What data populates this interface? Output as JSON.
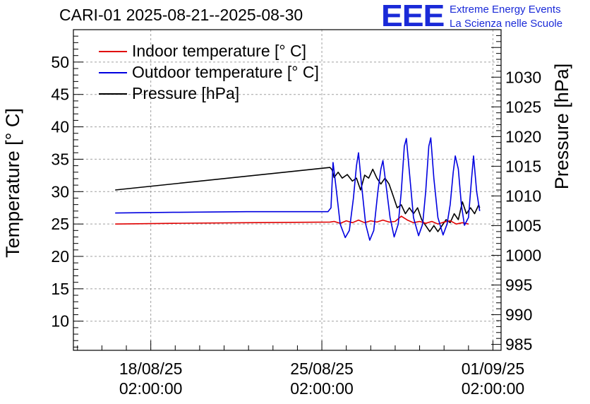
{
  "header": {
    "title": "CARI-01 2025-08-21--2025-08-30",
    "logo_text": "EEE",
    "logo_line1": "Extreme Energy Events",
    "logo_line2": "La Scienza nelle Scuole"
  },
  "colors": {
    "indoor": "#e00000",
    "outdoor": "#0000e0",
    "pressure": "#000000",
    "logo": "#1a2ad8",
    "grid": "#a0a0a0"
  },
  "chart_data": {
    "type": "line",
    "title": "CARI-01 2025-08-21--2025-08-30",
    "ylabel": "Temperature [° C]",
    "ylabel_right": "Pressure [hPa]",
    "ylim": [
      5.5,
      55
    ],
    "ylim_right": [
      984,
      1038
    ],
    "xlim": [
      "2025-08-14 22:00",
      "2025-09-01 10:00"
    ],
    "grid": true,
    "legend_position": "top-left",
    "x_ticks": [
      {
        "date": "18/08/25",
        "time": "02:00:00",
        "at": "2025-08-18 02:00"
      },
      {
        "date": "25/08/25",
        "time": "02:00:00",
        "at": "2025-08-25 02:00"
      },
      {
        "date": "01/09/25",
        "time": "02:00:00",
        "at": "2025-09-01 02:00"
      }
    ],
    "y_ticks_left": [
      "10",
      "15",
      "20",
      "25",
      "30",
      "35",
      "40",
      "45",
      "50"
    ],
    "y_ticks_right": [
      "985",
      "990",
      "995",
      "1000",
      "1005",
      "1010",
      "1015",
      "1020",
      "1025",
      "1030"
    ],
    "series": [
      {
        "name": "Indoor temperature [° C]",
        "axis": "left",
        "color": "#e00000",
        "points": [
          [
            "2025-08-16 15:00",
            25.0
          ],
          [
            "2025-08-19 00:00",
            25.1
          ],
          [
            "2025-08-22 00:00",
            25.2
          ],
          [
            "2025-08-25 10:00",
            25.3
          ],
          [
            "2025-08-25 14:00",
            25.4
          ],
          [
            "2025-08-25 20:00",
            25.1
          ],
          [
            "2025-08-26 02:00",
            25.5
          ],
          [
            "2025-08-26 08:00",
            25.2
          ],
          [
            "2025-08-26 14:00",
            25.6
          ],
          [
            "2025-08-26 20:00",
            25.2
          ],
          [
            "2025-08-27 02:00",
            25.5
          ],
          [
            "2025-08-27 08:00",
            25.3
          ],
          [
            "2025-08-27 14:00",
            25.6
          ],
          [
            "2025-08-27 20:00",
            25.3
          ],
          [
            "2025-08-28 02:00",
            25.4
          ],
          [
            "2025-08-28 08:00",
            26.2
          ],
          [
            "2025-08-28 14:00",
            25.6
          ],
          [
            "2025-08-28 20:00",
            25.2
          ],
          [
            "2025-08-29 02:00",
            25.4
          ],
          [
            "2025-08-29 08:00",
            25.1
          ],
          [
            "2025-08-29 14:00",
            25.4
          ],
          [
            "2025-08-29 20:00",
            25.0
          ],
          [
            "2025-08-30 02:00",
            25.3
          ],
          [
            "2025-08-30 08:00",
            25.5
          ],
          [
            "2025-08-30 14:00",
            25.0
          ],
          [
            "2025-08-30 20:00",
            25.2
          ],
          [
            "2025-08-31 02:00",
            25.0
          ]
        ]
      },
      {
        "name": "Outdoor temperature [° C]",
        "axis": "left",
        "color": "#0000e0",
        "points": [
          [
            "2025-08-16 15:00",
            26.7
          ],
          [
            "2025-08-19 00:00",
            26.8
          ],
          [
            "2025-08-22 00:00",
            26.9
          ],
          [
            "2025-08-25 08:00",
            26.9
          ],
          [
            "2025-08-25 11:00",
            27.5
          ],
          [
            "2025-08-25 13:00",
            34.5
          ],
          [
            "2025-08-25 16:00",
            30.5
          ],
          [
            "2025-08-25 20:00",
            25.0
          ],
          [
            "2025-08-26 01:00",
            22.9
          ],
          [
            "2025-08-26 05:00",
            24.0
          ],
          [
            "2025-08-26 09:00",
            29.0
          ],
          [
            "2025-08-26 12:00",
            34.0
          ],
          [
            "2025-08-26 14:00",
            36.0
          ],
          [
            "2025-08-26 17:00",
            31.0
          ],
          [
            "2025-08-26 21:00",
            25.0
          ],
          [
            "2025-08-27 01:00",
            22.5
          ],
          [
            "2025-08-27 05:00",
            24.0
          ],
          [
            "2025-08-27 09:00",
            30.0
          ],
          [
            "2025-08-27 12:00",
            33.5
          ],
          [
            "2025-08-27 14:00",
            34.8
          ],
          [
            "2025-08-27 17:00",
            31.0
          ],
          [
            "2025-08-27 21:00",
            26.0
          ],
          [
            "2025-08-28 01:00",
            23.0
          ],
          [
            "2025-08-28 05:00",
            25.0
          ],
          [
            "2025-08-28 08:00",
            30.0
          ],
          [
            "2025-08-28 11:00",
            37.0
          ],
          [
            "2025-08-28 13:00",
            38.2
          ],
          [
            "2025-08-28 16:00",
            33.0
          ],
          [
            "2025-08-28 20:00",
            26.0
          ],
          [
            "2025-08-29 01:00",
            23.2
          ],
          [
            "2025-08-29 05:00",
            25.0
          ],
          [
            "2025-08-29 08:00",
            30.0
          ],
          [
            "2025-08-29 11:00",
            37.0
          ],
          [
            "2025-08-29 13:00",
            38.3
          ],
          [
            "2025-08-29 16:00",
            32.0
          ],
          [
            "2025-08-29 20:00",
            26.0
          ],
          [
            "2025-08-30 01:00",
            23.3
          ],
          [
            "2025-08-30 05:00",
            25.0
          ],
          [
            "2025-08-30 08:00",
            28.0
          ],
          [
            "2025-08-30 11:00",
            33.0
          ],
          [
            "2025-08-30 13:00",
            35.5
          ],
          [
            "2025-08-30 16:00",
            33.5
          ],
          [
            "2025-08-30 19:00",
            28.0
          ],
          [
            "2025-08-30 22:00",
            24.8
          ],
          [
            "2025-08-31 02:00",
            26.0
          ],
          [
            "2025-08-31 05:00",
            32.0
          ],
          [
            "2025-08-31 07:00",
            35.5
          ],
          [
            "2025-08-31 10:00",
            30.0
          ],
          [
            "2025-08-31 13:00",
            27.0
          ]
        ]
      },
      {
        "name": "Pressure [hPa]",
        "axis": "right",
        "color": "#000000",
        "points": [
          [
            "2025-08-16 15:00",
            1011.0
          ],
          [
            "2025-08-25 10:00",
            1014.8
          ],
          [
            "2025-08-25 12:00",
            1014.4
          ],
          [
            "2025-08-25 14:00",
            1013.1
          ],
          [
            "2025-08-25 18:00",
            1014.0
          ],
          [
            "2025-08-25 22:00",
            1013.0
          ],
          [
            "2025-08-26 03:00",
            1013.6
          ],
          [
            "2025-08-26 08:00",
            1012.5
          ],
          [
            "2025-08-26 12:00",
            1013.0
          ],
          [
            "2025-08-26 16:00",
            1011.0
          ],
          [
            "2025-08-26 20:00",
            1013.5
          ],
          [
            "2025-08-27 00:00",
            1013.0
          ],
          [
            "2025-08-27 04:00",
            1014.5
          ],
          [
            "2025-08-27 08:00",
            1013.0
          ],
          [
            "2025-08-27 12:00",
            1012.0
          ],
          [
            "2025-08-27 16:00",
            1013.0
          ],
          [
            "2025-08-27 20:00",
            1012.0
          ],
          [
            "2025-08-28 00:00",
            1010.0
          ],
          [
            "2025-08-28 04:00",
            1008.0
          ],
          [
            "2025-08-28 08:00",
            1008.5
          ],
          [
            "2025-08-28 12:00",
            1007.0
          ],
          [
            "2025-08-28 16:00",
            1008.0
          ],
          [
            "2025-08-28 20:00",
            1007.0
          ],
          [
            "2025-08-29 00:00",
            1008.0
          ],
          [
            "2025-08-29 04:00",
            1006.0
          ],
          [
            "2025-08-29 08:00",
            1005.0
          ],
          [
            "2025-08-29 12:00",
            1004.0
          ],
          [
            "2025-08-29 16:00",
            1005.0
          ],
          [
            "2025-08-29 20:00",
            1004.0
          ],
          [
            "2025-08-30 00:00",
            1005.0
          ],
          [
            "2025-08-30 04:00",
            1006.0
          ],
          [
            "2025-08-30 08:00",
            1005.5
          ],
          [
            "2025-08-30 12:00",
            1007.0
          ],
          [
            "2025-08-30 16:00",
            1006.0
          ],
          [
            "2025-08-30 20:00",
            1009.0
          ],
          [
            "2025-08-31 00:00",
            1007.0
          ],
          [
            "2025-08-31 04:00",
            1008.0
          ],
          [
            "2025-08-31 08:00",
            1007.0
          ],
          [
            "2025-08-31 12:00",
            1008.5
          ],
          [
            "2025-08-31 13:00",
            1008.0
          ]
        ]
      }
    ]
  }
}
